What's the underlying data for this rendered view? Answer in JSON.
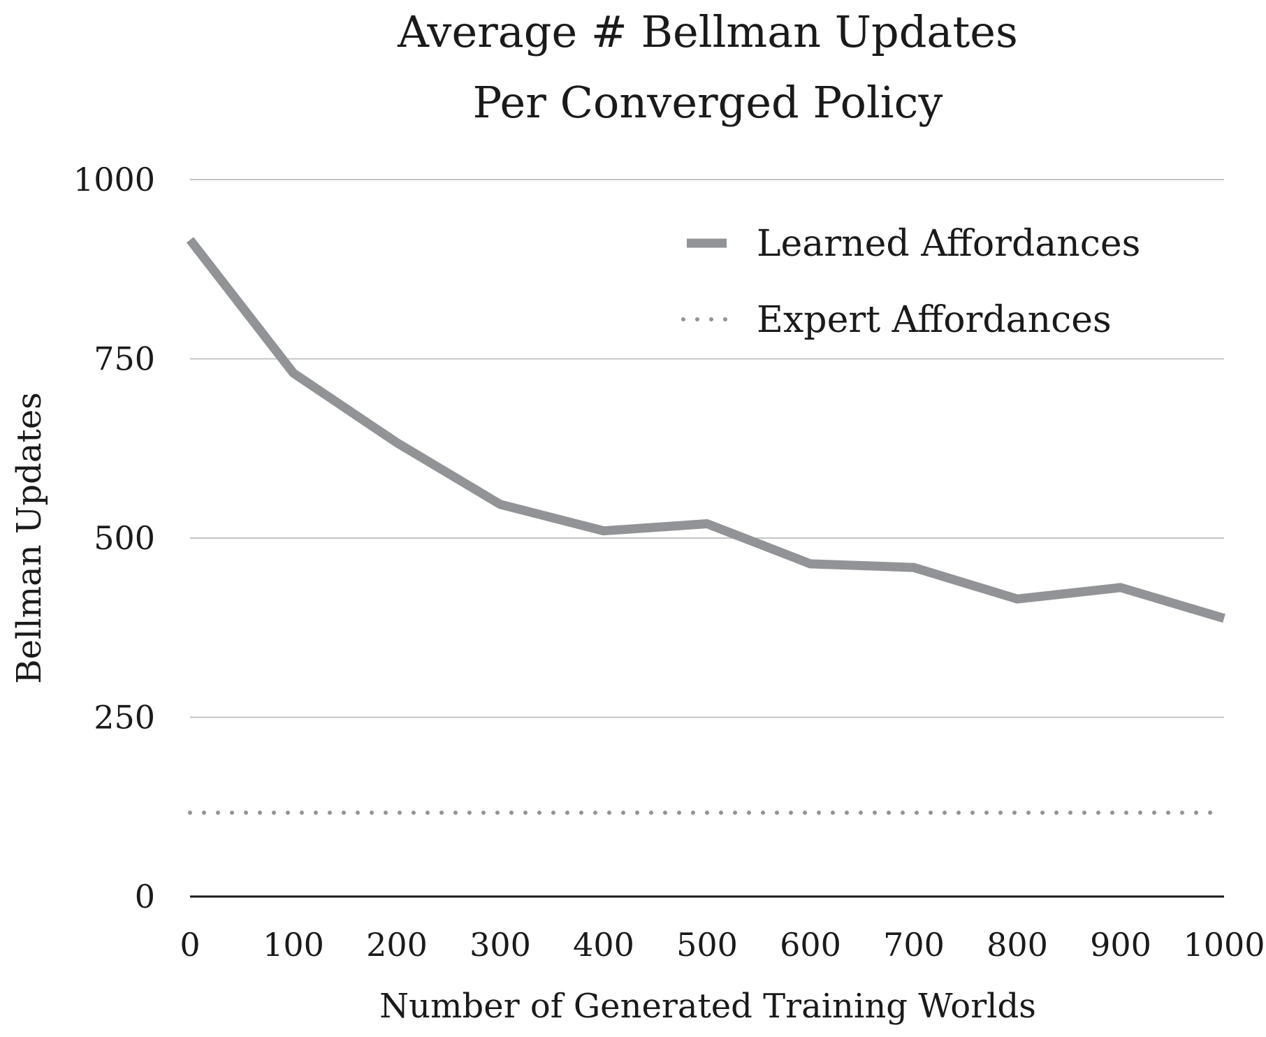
{
  "chart_data": {
    "type": "line",
    "title": [
      "Average # Bellman Updates",
      "Per Converged Policy"
    ],
    "xlabel": "Number of Generated Training Worlds",
    "ylabel": "Bellman Updates",
    "x": [
      0,
      100,
      200,
      300,
      400,
      500,
      600,
      700,
      800,
      900,
      1000
    ],
    "xticks": [
      "0",
      "100",
      "200",
      "300",
      "400",
      "500",
      "600",
      "700",
      "800",
      "900",
      "1000"
    ],
    "yticks": [
      "0",
      "250",
      "500",
      "750",
      "1000"
    ],
    "ylim": [
      0,
      1000
    ],
    "xlim": [
      0,
      1000
    ],
    "grid": true,
    "legend_position": "top-right",
    "series": [
      {
        "name": "Learned Affordances",
        "style": "solid",
        "color": "#919396",
        "values": [
          916,
          730,
          633,
          547,
          510,
          520,
          464,
          459,
          415,
          431,
          388
        ]
      },
      {
        "name": "Expert Affordances",
        "style": "dotted",
        "color": "#919396",
        "values": [
          117,
          117,
          117,
          117,
          117,
          117,
          117,
          117,
          117,
          117,
          117
        ]
      }
    ]
  }
}
